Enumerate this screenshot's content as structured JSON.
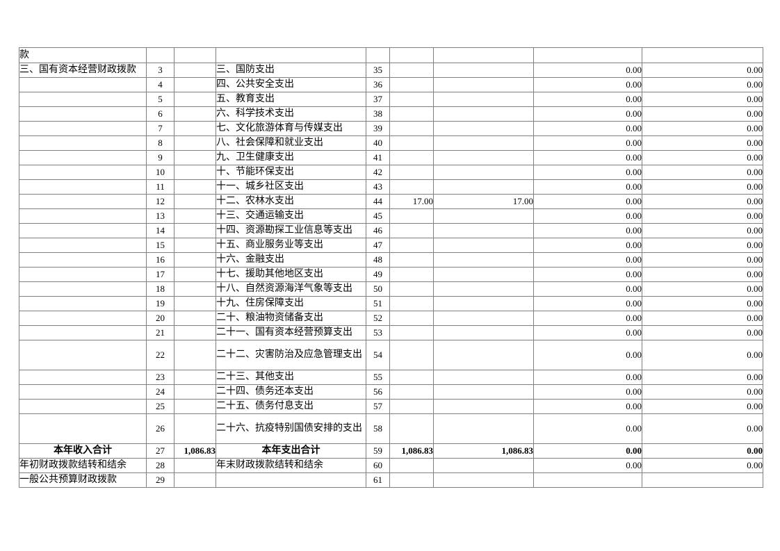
{
  "table": {
    "name": "financial-appropriation-income-expense-table",
    "columns": [
      "income_item",
      "income_line_no",
      "income_amount",
      "expense_item",
      "expense_line_no",
      "expense_amount_1",
      "expense_amount_2",
      "expense_amount_3",
      "expense_amount_4"
    ],
    "rows": [
      {
        "item_l": "款",
        "no_l": "",
        "val_l": "",
        "item_r": "",
        "no_r": "",
        "v1": "",
        "v2": "",
        "v3": "",
        "v4": "",
        "cont": true,
        "tall": false,
        "bold": false
      },
      {
        "item_l": "三、国有资本经营财政拨款",
        "no_l": "3",
        "val_l": "",
        "item_r": "三、国防支出",
        "no_r": "35",
        "v1": "",
        "v2": "",
        "v3": "0.00",
        "v4": "0.00",
        "cont": false,
        "tall": false,
        "bold": false
      },
      {
        "item_l": "",
        "no_l": "4",
        "val_l": "",
        "item_r": "四、公共安全支出",
        "no_r": "36",
        "v1": "",
        "v2": "",
        "v3": "0.00",
        "v4": "0.00",
        "cont": false,
        "tall": false,
        "bold": false
      },
      {
        "item_l": "",
        "no_l": "5",
        "val_l": "",
        "item_r": "五、教育支出",
        "no_r": "37",
        "v1": "",
        "v2": "",
        "v3": "0.00",
        "v4": "0.00",
        "cont": false,
        "tall": false,
        "bold": false
      },
      {
        "item_l": "",
        "no_l": "6",
        "val_l": "",
        "item_r": "六、科学技术支出",
        "no_r": "38",
        "v1": "",
        "v2": "",
        "v3": "0.00",
        "v4": "0.00",
        "cont": false,
        "tall": false,
        "bold": false
      },
      {
        "item_l": "",
        "no_l": "7",
        "val_l": "",
        "item_r": "七、文化旅游体育与传媒支出",
        "no_r": "39",
        "v1": "",
        "v2": "",
        "v3": "0.00",
        "v4": "0.00",
        "cont": false,
        "tall": false,
        "bold": false
      },
      {
        "item_l": "",
        "no_l": "8",
        "val_l": "",
        "item_r": "八、社会保障和就业支出",
        "no_r": "40",
        "v1": "",
        "v2": "",
        "v3": "0.00",
        "v4": "0.00",
        "cont": false,
        "tall": false,
        "bold": false
      },
      {
        "item_l": "",
        "no_l": "9",
        "val_l": "",
        "item_r": "九、卫生健康支出",
        "no_r": "41",
        "v1": "",
        "v2": "",
        "v3": "0.00",
        "v4": "0.00",
        "cont": false,
        "tall": false,
        "bold": false
      },
      {
        "item_l": "",
        "no_l": "10",
        "val_l": "",
        "item_r": "十、节能环保支出",
        "no_r": "42",
        "v1": "",
        "v2": "",
        "v3": "0.00",
        "v4": "0.00",
        "cont": false,
        "tall": false,
        "bold": false
      },
      {
        "item_l": "",
        "no_l": "11",
        "val_l": "",
        "item_r": "十一、城乡社区支出",
        "no_r": "43",
        "v1": "",
        "v2": "",
        "v3": "0.00",
        "v4": "0.00",
        "cont": false,
        "tall": false,
        "bold": false
      },
      {
        "item_l": "",
        "no_l": "12",
        "val_l": "",
        "item_r": "十二、农林水支出",
        "no_r": "44",
        "v1": "17.00",
        "v2": "17.00",
        "v3": "0.00",
        "v4": "0.00",
        "cont": false,
        "tall": false,
        "bold": false
      },
      {
        "item_l": "",
        "no_l": "13",
        "val_l": "",
        "item_r": "十三、交通运输支出",
        "no_r": "45",
        "v1": "",
        "v2": "",
        "v3": "0.00",
        "v4": "0.00",
        "cont": false,
        "tall": false,
        "bold": false
      },
      {
        "item_l": "",
        "no_l": "14",
        "val_l": "",
        "item_r": "十四、资源勘探工业信息等支出",
        "no_r": "46",
        "v1": "",
        "v2": "",
        "v3": "0.00",
        "v4": "0.00",
        "cont": false,
        "tall": false,
        "bold": false
      },
      {
        "item_l": "",
        "no_l": "15",
        "val_l": "",
        "item_r": "十五、商业服务业等支出",
        "no_r": "47",
        "v1": "",
        "v2": "",
        "v3": "0.00",
        "v4": "0.00",
        "cont": false,
        "tall": false,
        "bold": false
      },
      {
        "item_l": "",
        "no_l": "16",
        "val_l": "",
        "item_r": "十六、金融支出",
        "no_r": "48",
        "v1": "",
        "v2": "",
        "v3": "0.00",
        "v4": "0.00",
        "cont": false,
        "tall": false,
        "bold": false
      },
      {
        "item_l": "",
        "no_l": "17",
        "val_l": "",
        "item_r": "十七、援助其他地区支出",
        "no_r": "49",
        "v1": "",
        "v2": "",
        "v3": "0.00",
        "v4": "0.00",
        "cont": false,
        "tall": false,
        "bold": false
      },
      {
        "item_l": "",
        "no_l": "18",
        "val_l": "",
        "item_r": "十八、自然资源海洋气象等支出",
        "no_r": "50",
        "v1": "",
        "v2": "",
        "v3": "0.00",
        "v4": "0.00",
        "cont": false,
        "tall": false,
        "bold": false
      },
      {
        "item_l": "",
        "no_l": "19",
        "val_l": "",
        "item_r": "十九、住房保障支出",
        "no_r": "51",
        "v1": "",
        "v2": "",
        "v3": "0.00",
        "v4": "0.00",
        "cont": false,
        "tall": false,
        "bold": false
      },
      {
        "item_l": "",
        "no_l": "20",
        "val_l": "",
        "item_r": "二十、粮油物资储备支出",
        "no_r": "52",
        "v1": "",
        "v2": "",
        "v3": "0.00",
        "v4": "0.00",
        "cont": false,
        "tall": false,
        "bold": false
      },
      {
        "item_l": "",
        "no_l": "21",
        "val_l": "",
        "item_r": "二十一、国有资本经营预算支出",
        "no_r": "53",
        "v1": "",
        "v2": "",
        "v3": "0.00",
        "v4": "0.00",
        "cont": false,
        "tall": false,
        "bold": false
      },
      {
        "item_l": "",
        "no_l": "22",
        "val_l": "",
        "item_r": "二十二、灾害防治及应急管理支出",
        "no_r": "54",
        "v1": "",
        "v2": "",
        "v3": "0.00",
        "v4": "0.00",
        "cont": false,
        "tall": true,
        "bold": false
      },
      {
        "item_l": "",
        "no_l": "23",
        "val_l": "",
        "item_r": "二十三、其他支出",
        "no_r": "55",
        "v1": "",
        "v2": "",
        "v3": "0.00",
        "v4": "0.00",
        "cont": false,
        "tall": false,
        "bold": false
      },
      {
        "item_l": "",
        "no_l": "24",
        "val_l": "",
        "item_r": "二十四、债务还本支出",
        "no_r": "56",
        "v1": "",
        "v2": "",
        "v3": "0.00",
        "v4": "0.00",
        "cont": false,
        "tall": false,
        "bold": false
      },
      {
        "item_l": "",
        "no_l": "25",
        "val_l": "",
        "item_r": "二十五、债务付息支出",
        "no_r": "57",
        "v1": "",
        "v2": "",
        "v3": "0.00",
        "v4": "0.00",
        "cont": false,
        "tall": false,
        "bold": false
      },
      {
        "item_l": "",
        "no_l": "26",
        "val_l": "",
        "item_r": "二十六、抗疫特别国债安排的支出",
        "no_r": "58",
        "v1": "",
        "v2": "",
        "v3": "0.00",
        "v4": "0.00",
        "cont": false,
        "tall": true,
        "bold": false
      },
      {
        "item_l": "本年收入合计",
        "no_l": "27",
        "val_l": "1,086.83",
        "item_r": "本年支出合计",
        "no_r": "59",
        "v1": "1,086.83",
        "v2": "1,086.83",
        "v3": "0.00",
        "v4": "0.00",
        "cont": false,
        "tall": false,
        "bold": true
      },
      {
        "item_l": "年初财政拨款结转和结余",
        "no_l": "28",
        "val_l": "",
        "item_r": "年末财政拨款结转和结余",
        "no_r": "60",
        "v1": "",
        "v2": "",
        "v3": "0.00",
        "v4": "0.00",
        "cont": false,
        "tall": false,
        "bold": false
      },
      {
        "item_l": "一般公共预算财政拨款",
        "no_l": "29",
        "val_l": "",
        "item_r": "",
        "no_r": "61",
        "v1": "",
        "v2": "",
        "v3": "",
        "v4": "",
        "cont": false,
        "tall": false,
        "bold": false
      }
    ]
  }
}
